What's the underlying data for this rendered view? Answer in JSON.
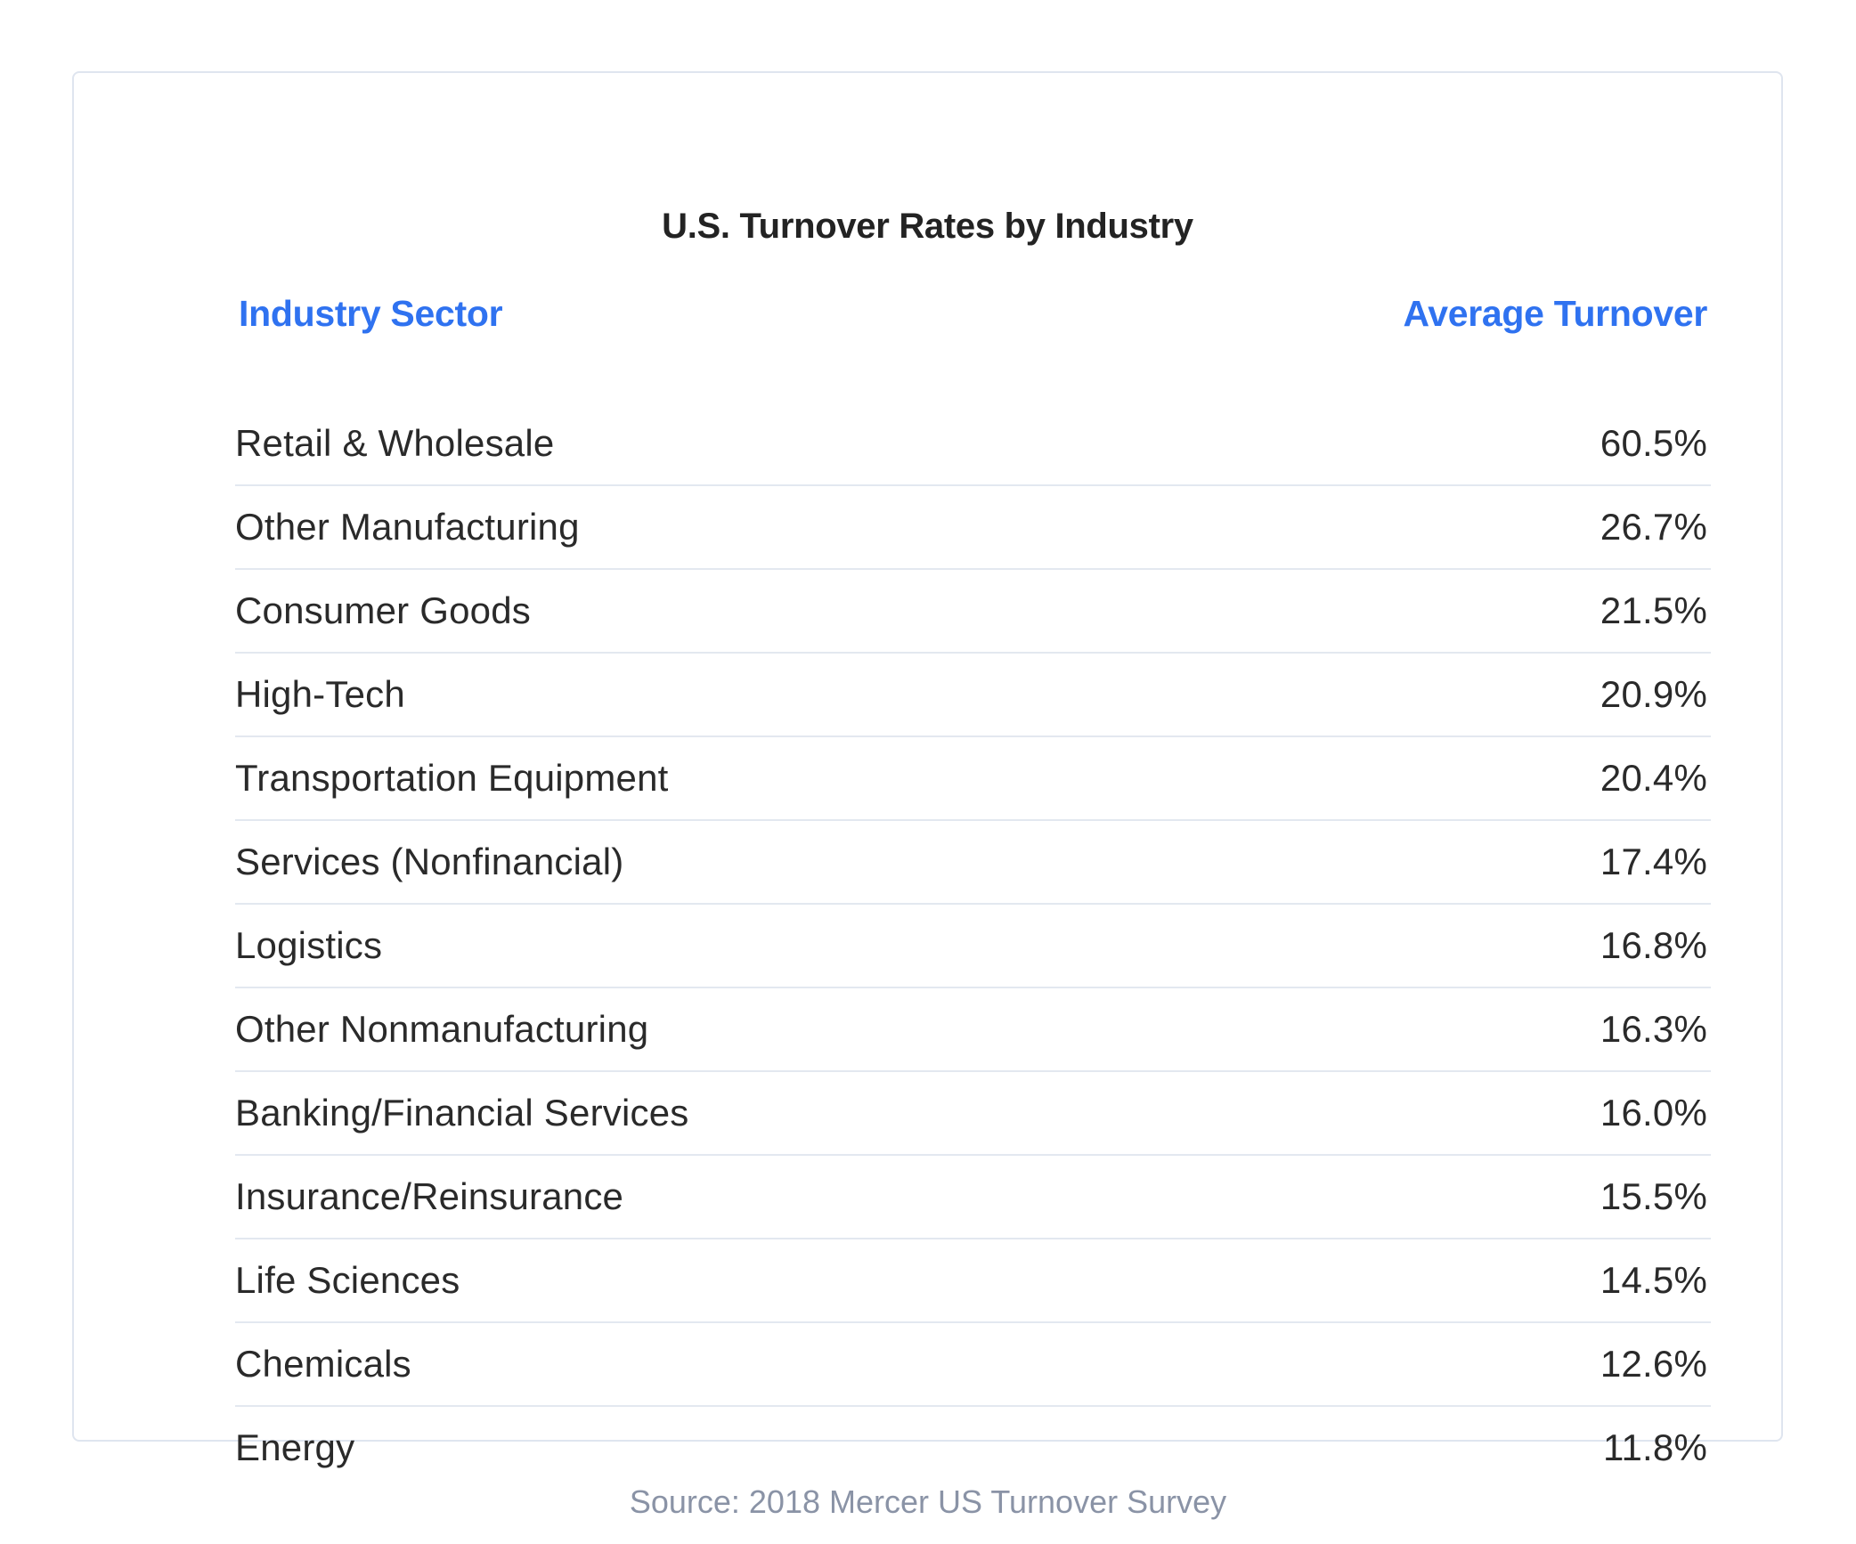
{
  "title": "U.S. Turnover Rates by Industry",
  "table": {
    "headers": {
      "sector": "Industry Sector",
      "turnover": "Average Turnover"
    },
    "rows": [
      {
        "sector": "Retail & Wholesale",
        "turnover": "60.5%"
      },
      {
        "sector": "Other Manufacturing",
        "turnover": "26.7%"
      },
      {
        "sector": "Consumer Goods",
        "turnover": "21.5%"
      },
      {
        "sector": "High-Tech",
        "turnover": "20.9%"
      },
      {
        "sector": "Transportation Equipment",
        "turnover": "20.4%"
      },
      {
        "sector": "Services (Nonfinancial)",
        "turnover": "17.4%"
      },
      {
        "sector": "Logistics",
        "turnover": "16.8%"
      },
      {
        "sector": "Other Nonmanufacturing",
        "turnover": "16.3%"
      },
      {
        "sector": "Banking/Financial Services",
        "turnover": "16.0%"
      },
      {
        "sector": "Insurance/Reinsurance",
        "turnover": "15.5%"
      },
      {
        "sector": "Life Sciences",
        "turnover": "14.5%"
      },
      {
        "sector": "Chemicals",
        "turnover": "12.6%"
      },
      {
        "sector": "Energy",
        "turnover": "11.8%"
      }
    ]
  },
  "source": "Source: 2018 Mercer US Turnover Survey",
  "colors": {
    "header_blue": "#2f72f0",
    "text_dark": "#232323",
    "source_gray": "#8a93a6",
    "border": "#dfe5ef"
  }
}
